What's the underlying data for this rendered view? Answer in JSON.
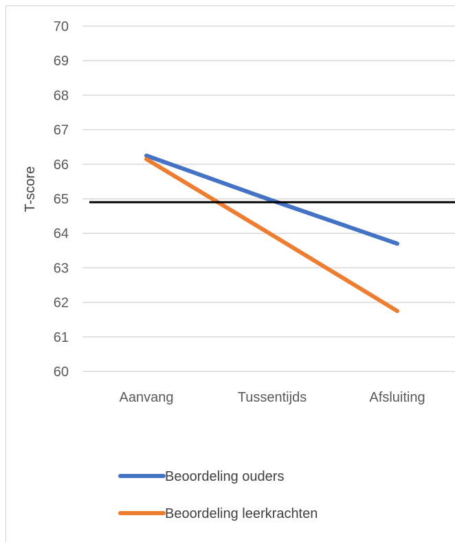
{
  "chart_data": {
    "type": "line",
    "title": "",
    "xlabel": "",
    "ylabel": "T-score",
    "categories": [
      "Aanvang",
      "Tussentijds",
      "Afsluiting"
    ],
    "y_ticks": [
      "60",
      "61",
      "62",
      "63",
      "64",
      "65",
      "66",
      "67",
      "68",
      "69",
      "70"
    ],
    "ylim": [
      60,
      70
    ],
    "grid": true,
    "reference_line": 64.9,
    "series": [
      {
        "name": "Beoordeling ouders",
        "color": "#4472C4",
        "values": [
          66.25,
          64.95,
          63.7
        ]
      },
      {
        "name": "Beoordeling leerkrachten",
        "color": "#ED7D31",
        "values": [
          66.15,
          63.95,
          61.75
        ]
      }
    ],
    "legend_position": "bottom"
  }
}
